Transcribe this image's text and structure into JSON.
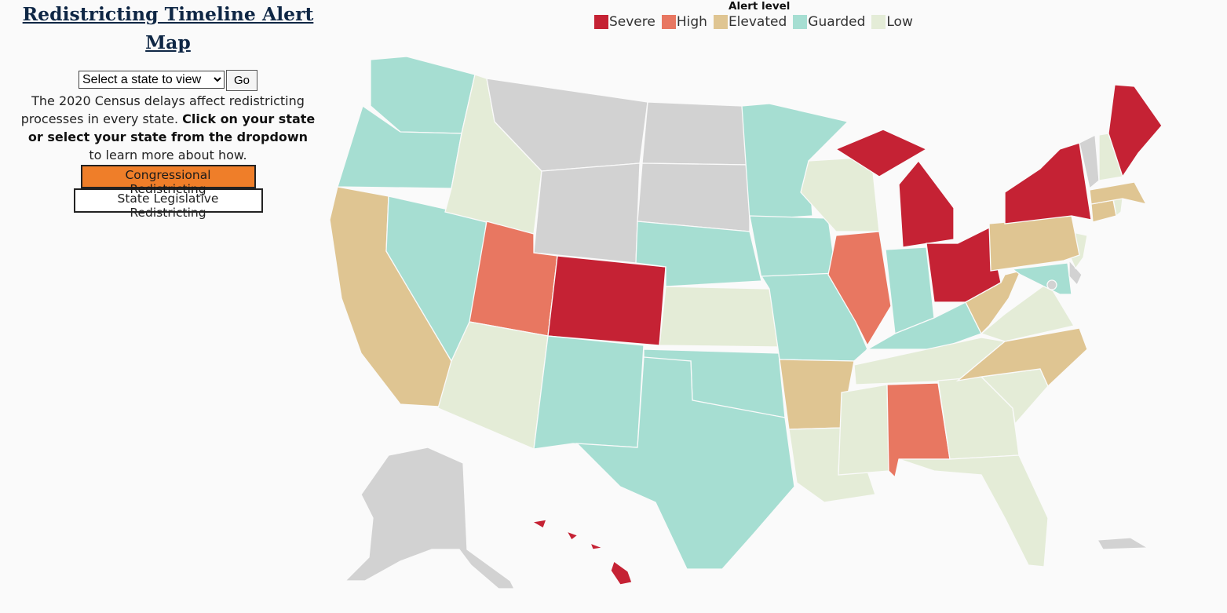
{
  "sidebar": {
    "title": "Redistricting Timeline Alert Map",
    "select_selected": "Select a state to view",
    "go_label": "Go",
    "intro_pre": "The 2020 Census delays affect redistricting processes in every state. ",
    "intro_bold": "Click on your state or select your state from the dropdown",
    "intro_post": " to learn more about how.",
    "congress_button": "Congressional Redistricting",
    "state_button": "State Legislative Redistricting"
  },
  "legend": {
    "title": "Alert level",
    "levels": [
      {
        "label": "Severe",
        "color": "#c52234"
      },
      {
        "label": "High",
        "color": "#e87761"
      },
      {
        "label": "Elevated",
        "color": "#dfc592"
      },
      {
        "label": "Guarded",
        "color": "#a6ded2"
      },
      {
        "label": "Low",
        "color": "#e4ecd7"
      }
    ],
    "no_data_color": "#d2d2d2"
  },
  "map": {
    "states": [
      {
        "name": "washington",
        "level": "Guarded"
      },
      {
        "name": "oregon",
        "level": "Guarded"
      },
      {
        "name": "california",
        "level": "Elevated"
      },
      {
        "name": "nevada",
        "level": "Guarded"
      },
      {
        "name": "idaho",
        "level": "Low"
      },
      {
        "name": "montana",
        "level": "none"
      },
      {
        "name": "wyoming",
        "level": "none"
      },
      {
        "name": "utah",
        "level": "High"
      },
      {
        "name": "arizona",
        "level": "Low"
      },
      {
        "name": "colorado",
        "level": "Severe"
      },
      {
        "name": "new-mexico",
        "level": "Guarded"
      },
      {
        "name": "north-dakota",
        "level": "none"
      },
      {
        "name": "south-dakota",
        "level": "none"
      },
      {
        "name": "nebraska",
        "level": "Guarded"
      },
      {
        "name": "kansas",
        "level": "Low"
      },
      {
        "name": "oklahoma",
        "level": "Guarded"
      },
      {
        "name": "texas",
        "level": "Guarded"
      },
      {
        "name": "minnesota",
        "level": "Guarded"
      },
      {
        "name": "iowa",
        "level": "Guarded"
      },
      {
        "name": "missouri",
        "level": "Guarded"
      },
      {
        "name": "arkansas",
        "level": "Elevated"
      },
      {
        "name": "louisiana",
        "level": "Low"
      },
      {
        "name": "wisconsin",
        "level": "Low"
      },
      {
        "name": "illinois",
        "level": "High"
      },
      {
        "name": "michigan",
        "level": "Severe"
      },
      {
        "name": "indiana",
        "level": "Guarded"
      },
      {
        "name": "ohio",
        "level": "Severe"
      },
      {
        "name": "kentucky",
        "level": "Guarded"
      },
      {
        "name": "tennessee",
        "level": "Low"
      },
      {
        "name": "mississippi",
        "level": "Low"
      },
      {
        "name": "alabama",
        "level": "High"
      },
      {
        "name": "georgia",
        "level": "Low"
      },
      {
        "name": "florida",
        "level": "Low"
      },
      {
        "name": "south-carolina",
        "level": "Low"
      },
      {
        "name": "north-carolina",
        "level": "Elevated"
      },
      {
        "name": "virginia",
        "level": "Low"
      },
      {
        "name": "west-virginia",
        "level": "Elevated"
      },
      {
        "name": "maryland",
        "level": "Guarded"
      },
      {
        "name": "delaware",
        "level": "none"
      },
      {
        "name": "new-jersey",
        "level": "Low"
      },
      {
        "name": "pennsylvania",
        "level": "Elevated"
      },
      {
        "name": "new-york",
        "level": "Severe"
      },
      {
        "name": "connecticut",
        "level": "Elevated"
      },
      {
        "name": "rhode-island",
        "level": "Low"
      },
      {
        "name": "massachusetts",
        "level": "Elevated"
      },
      {
        "name": "vermont",
        "level": "none"
      },
      {
        "name": "new-hampshire",
        "level": "Low"
      },
      {
        "name": "maine",
        "level": "Severe"
      },
      {
        "name": "alaska",
        "level": "none"
      },
      {
        "name": "hawaii",
        "level": "Severe"
      },
      {
        "name": "puerto-rico",
        "level": "none"
      },
      {
        "name": "district-of-columbia",
        "level": "none"
      }
    ]
  }
}
